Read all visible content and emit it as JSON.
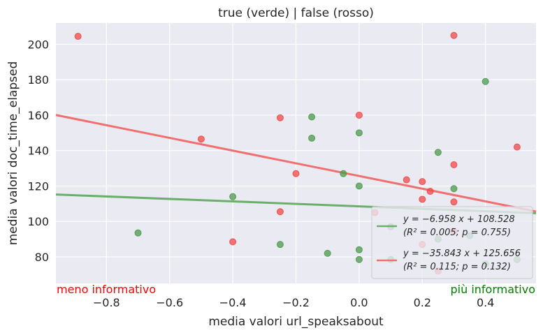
{
  "chart_data": {
    "type": "scatter",
    "title": "true (verde) | false (rosso)",
    "xlabel": "media valori url_speaksabout",
    "ylabel": "media valori doc_time_elapsed",
    "xlim": [
      -0.96,
      0.56
    ],
    "ylim": [
      65,
      212
    ],
    "xticks": [
      -0.8,
      -0.6,
      -0.4,
      -0.2,
      0.0,
      0.2,
      0.4
    ],
    "xtick_labels": [
      "−0.8",
      "−0.6",
      "−0.4",
      "−0.2",
      "0.0",
      "0.2",
      "0.4"
    ],
    "yticks": [
      80,
      100,
      120,
      140,
      160,
      180,
      200
    ],
    "ytick_labels": [
      "80",
      "100",
      "120",
      "140",
      "160",
      "180",
      "200"
    ],
    "grid": true,
    "legend_position": "bottom-right",
    "corner_labels": {
      "left": {
        "text": "meno informativo",
        "color": "#ff0000"
      },
      "right": {
        "text": "più informativo",
        "color": "#008000"
      }
    },
    "series": [
      {
        "color": "#4c9a4c",
        "line_color": "#6ab06a",
        "legend_line1": "y = −6.958 x + 108.528",
        "legend_line2": "(R² = 0.005; p = 0.755)",
        "fit": {
          "slope": -6.958,
          "intercept": 108.528
        },
        "points": [
          {
            "x": -0.7,
            "y": 93.5
          },
          {
            "x": -0.4,
            "y": 114
          },
          {
            "x": -0.25,
            "y": 87
          },
          {
            "x": -0.15,
            "y": 159
          },
          {
            "x": -0.15,
            "y": 147
          },
          {
            "x": -0.1,
            "y": 82
          },
          {
            "x": -0.05,
            "y": 127
          },
          {
            "x": 0.0,
            "y": 150
          },
          {
            "x": 0.0,
            "y": 120
          },
          {
            "x": 0.0,
            "y": 84
          },
          {
            "x": 0.0,
            "y": 78.5
          },
          {
            "x": 0.1,
            "y": 97
          },
          {
            "x": 0.1,
            "y": 78.5
          },
          {
            "x": 0.25,
            "y": 139
          },
          {
            "x": 0.25,
            "y": 90
          },
          {
            "x": 0.3,
            "y": 118.5
          },
          {
            "x": 0.35,
            "y": 92
          },
          {
            "x": 0.4,
            "y": 179
          },
          {
            "x": 0.4,
            "y": 76
          },
          {
            "x": 0.5,
            "y": 78.5
          }
        ]
      },
      {
        "color": "#f04848",
        "line_color": "#f07070",
        "legend_line1": "y = −35.843 x + 125.656",
        "legend_line2": "(R² = 0.115; p = 0.132)",
        "fit": {
          "slope": -35.843,
          "intercept": 125.656
        },
        "points": [
          {
            "x": -0.89,
            "y": 204.5
          },
          {
            "x": -0.5,
            "y": 146.5
          },
          {
            "x": -0.4,
            "y": 88.5
          },
          {
            "x": -0.25,
            "y": 158.5
          },
          {
            "x": -0.25,
            "y": 105.5
          },
          {
            "x": -0.2,
            "y": 127
          },
          {
            "x": 0.0,
            "y": 160
          },
          {
            "x": 0.05,
            "y": 105
          },
          {
            "x": 0.15,
            "y": 123.5
          },
          {
            "x": 0.2,
            "y": 122.5
          },
          {
            "x": 0.2,
            "y": 112.5
          },
          {
            "x": 0.2,
            "y": 87
          },
          {
            "x": 0.225,
            "y": 117
          },
          {
            "x": 0.25,
            "y": 72
          },
          {
            "x": 0.3,
            "y": 205
          },
          {
            "x": 0.3,
            "y": 132
          },
          {
            "x": 0.3,
            "y": 111
          },
          {
            "x": 0.3,
            "y": 94.5
          },
          {
            "x": 0.5,
            "y": 142
          }
        ]
      }
    ]
  }
}
